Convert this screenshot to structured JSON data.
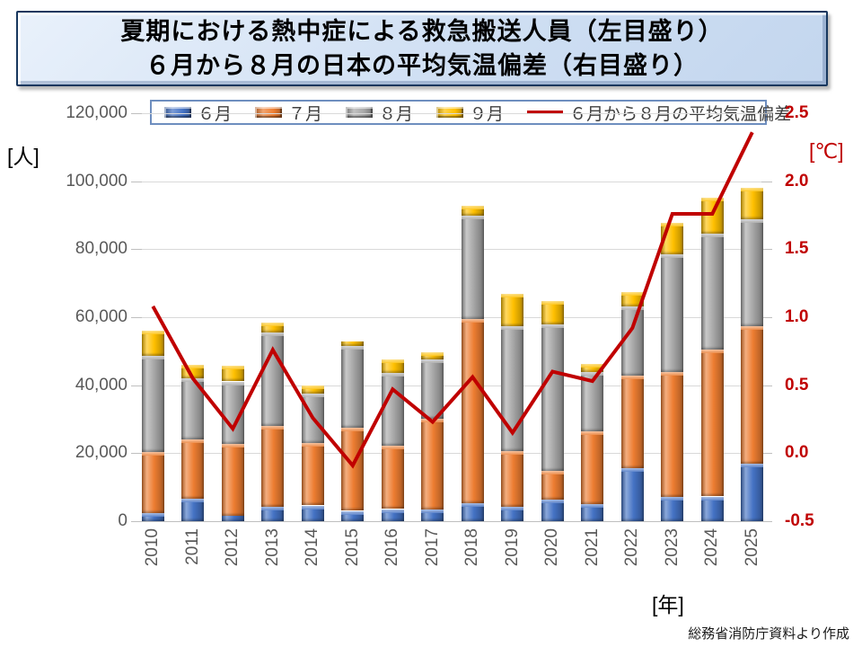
{
  "title": {
    "line1": "夏期における熱中症による救急搬送人員（左目盛り）",
    "line2": "６月から８月の日本の平均気温偏差（右目盛り）"
  },
  "axes": {
    "left": {
      "unit_label": "[人]",
      "ticks": [
        "120,000",
        "100,000",
        "80,000",
        "60,000",
        "40,000",
        "20,000",
        "0"
      ]
    },
    "right": {
      "unit_label": "[℃]",
      "ticks": [
        "2.5",
        "2.0",
        "1.5",
        "1.0",
        "0.5",
        "0.0",
        "-0.5"
      ]
    },
    "x": {
      "unit_label": "[年]"
    }
  },
  "legend": {
    "items": [
      {
        "type": "box",
        "label": "６月",
        "color": "#4472C4"
      },
      {
        "type": "box",
        "label": "７月",
        "color": "#ED7D31"
      },
      {
        "type": "box",
        "label": "８月",
        "color": "#A6A6A6"
      },
      {
        "type": "box",
        "label": "９月",
        "color": "#FFC000"
      },
      {
        "type": "line",
        "label": "６月から８月の平均気温偏差",
        "color": "#C00000"
      }
    ]
  },
  "source_note": "総務省消防庁資料より作成",
  "colors": {
    "june": "#4472C4",
    "july": "#ED7D31",
    "august": "#A6A6A6",
    "september": "#FFC000",
    "temp_line": "#C00000",
    "gridline": "#D9D9D9",
    "tick_text": "#595959",
    "right_axis_text": "#C00000",
    "title_bg": "#CFDFF3",
    "title_border": "#17375E"
  },
  "chart_data": {
    "type": "bar",
    "subtype": "stacked-bar-with-line",
    "title": "夏期における熱中症による救急搬送人員（左目盛り）／６月から８月の日本の平均気温偏差（右目盛り）",
    "categories": [
      "2010",
      "2011",
      "2012",
      "2013",
      "2014",
      "2015",
      "2016",
      "2017",
      "2018",
      "2019",
      "2020",
      "2021",
      "2022",
      "2023",
      "2024",
      "2025"
    ],
    "series": [
      {
        "name": "６月",
        "key": "june",
        "color": "#4472C4",
        "values": [
          2276,
          6600,
          1600,
          4265,
          4634,
          3032,
          3558,
          3481,
          5269,
          4151,
          6336,
          4945,
          15657,
          7235,
          7275,
          17000
        ]
      },
      {
        "name": "７月",
        "key": "july",
        "color": "#ED7D31",
        "values": [
          17963,
          17500,
          21100,
          23699,
          18407,
          24567,
          18671,
          26702,
          54220,
          16431,
          8388,
          21372,
          27209,
          36549,
          43195,
          40300
        ]
      },
      {
        "name": "８月",
        "key": "august",
        "color": "#A6A6A6",
        "values": [
          28448,
          17900,
          18400,
          27632,
          14579,
          23925,
          21383,
          17302,
          30410,
          36755,
          43060,
          17579,
          20252,
          34835,
          34033,
          31600
        ]
      },
      {
        "name": "９月",
        "key": "september",
        "color": "#FFC000",
        "values": [
          7432,
          4000,
          4700,
          2951,
          2428,
          1424,
          4012,
          2098,
          2811,
          9532,
          6925,
          2355,
          4327,
          9193,
          10700,
          9200
        ]
      }
    ],
    "line_series": {
      "name": "６月から８月の平均気温偏差",
      "color": "#C00000",
      "values": [
        1.08,
        0.55,
        0.18,
        0.76,
        0.26,
        -0.09,
        0.47,
        0.23,
        0.56,
        0.15,
        0.6,
        0.53,
        0.92,
        1.76,
        1.76,
        2.36
      ]
    },
    "left_axis": {
      "label": "[人]",
      "min": 0,
      "max": 120000,
      "tick_step": 20000
    },
    "right_axis": {
      "label": "[℃]",
      "min": -0.5,
      "max": 2.5,
      "tick_step": 0.5
    },
    "x_axis_label": "[年]",
    "grid": true,
    "legend_position": "top"
  }
}
